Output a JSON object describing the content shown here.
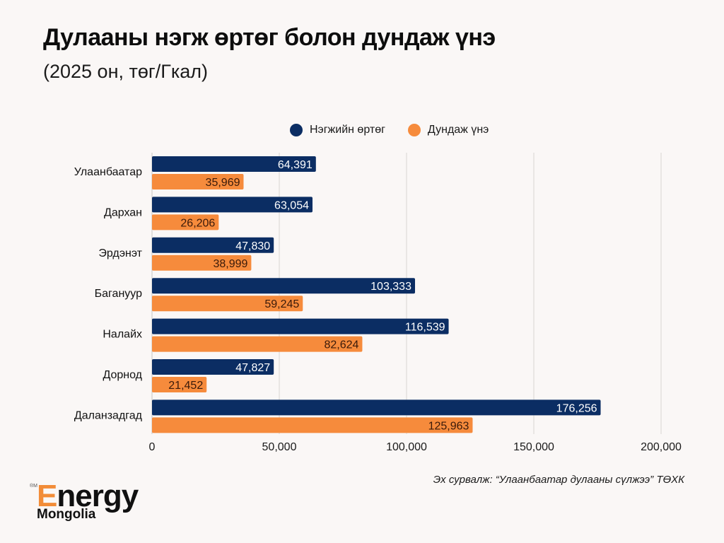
{
  "header": {
    "title": "Дулааны нэгж өртөг болон дундаж үнэ",
    "subtitle": "(2025 он, төг/Гкал)"
  },
  "legend": [
    {
      "label": "Нэгжийн өртөг",
      "color": "#0b2d63"
    },
    {
      "label": "Дундаж үнэ",
      "color": "#f68b3c"
    }
  ],
  "source": "Эх сурвалж: “Улаанбаатар дулааны сүлжээ” ТӨХК",
  "logo": {
    "mark": "®M",
    "first_letter": "E",
    "rest": "nergy",
    "sub": "Mongolia"
  },
  "chart_data": {
    "type": "bar",
    "orientation": "horizontal",
    "title": "Дулааны нэгж өртөг болон дундаж үнэ",
    "subtitle": "(2025 он, төг/Гкал)",
    "categories": [
      "Улаанбаатар",
      "Дархан",
      "Эрдэнэт",
      "Багануур",
      "Налайх",
      "Дорнод",
      "Даланзадгад"
    ],
    "series": [
      {
        "name": "Нэгжийн өртөг",
        "color": "#0b2d63",
        "label_color": "#ffffff",
        "values": [
          64391,
          63054,
          47830,
          103333,
          116539,
          47827,
          176256
        ]
      },
      {
        "name": "Дундаж үнэ",
        "color": "#f68b3c",
        "label_color": "#3a1a0a",
        "values": [
          35969,
          26206,
          38999,
          59245,
          82624,
          21452,
          125963
        ]
      }
    ],
    "xlim": [
      0,
      200000
    ],
    "xticks": [
      0,
      50000,
      100000,
      150000,
      200000
    ],
    "xtick_labels": [
      "0",
      "50,000",
      "100,000",
      "150,000",
      "200,000"
    ],
    "xlabel": "",
    "ylabel": "",
    "grid": "vertical",
    "legend_position": "top",
    "data_labels": true
  }
}
